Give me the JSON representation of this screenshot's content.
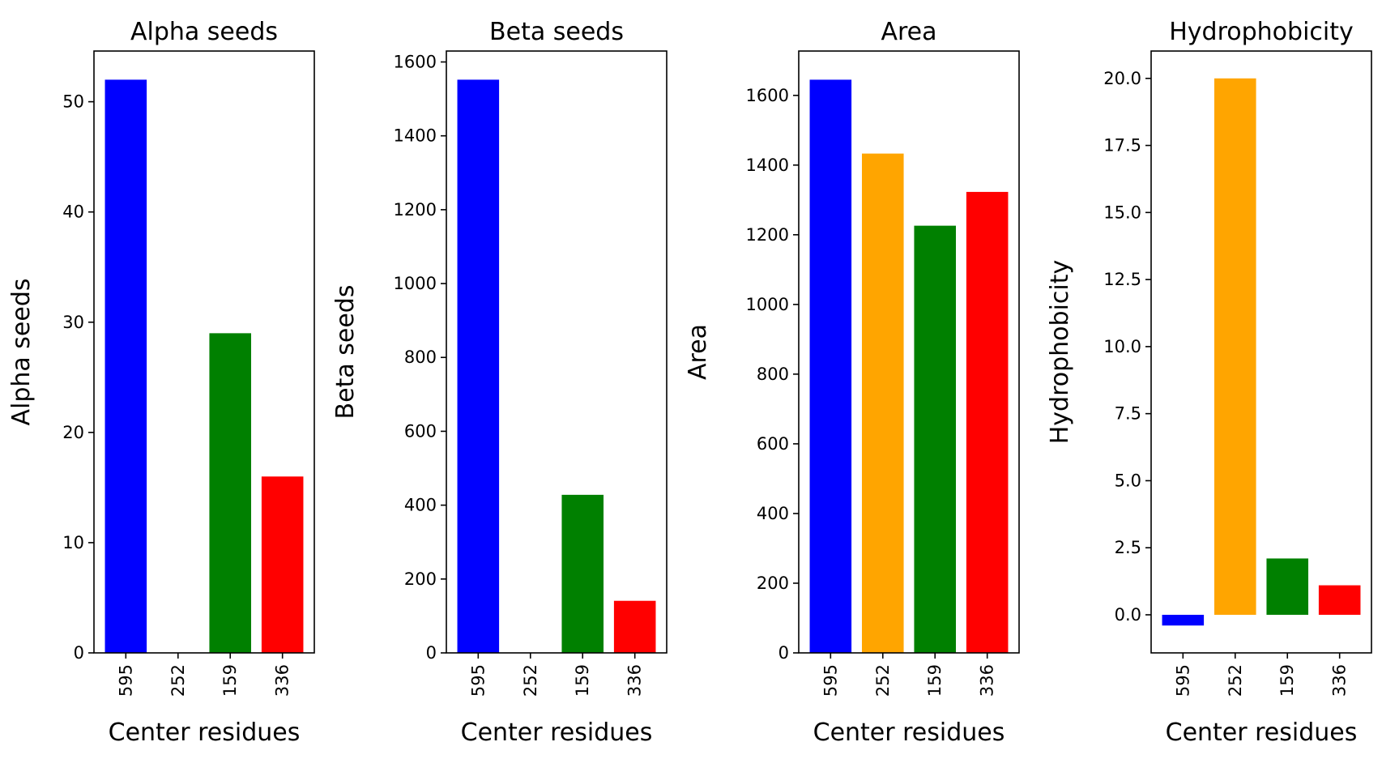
{
  "chart_data": [
    {
      "type": "bar",
      "title": "Alpha seeds",
      "xlabel": "Center residues",
      "ylabel": "Alpha seeds",
      "categories": [
        "595",
        "252",
        "159",
        "336"
      ],
      "values": [
        52,
        0,
        29,
        16
      ],
      "colors": [
        "#0000ff",
        "#ffa500",
        "#008000",
        "#ff0000"
      ],
      "ylim": [
        0,
        54.6
      ],
      "yticks": [
        0,
        10,
        20,
        30,
        40,
        50
      ],
      "ytick_labels": [
        "0",
        "10",
        "20",
        "30",
        "40",
        "50"
      ],
      "grid": false
    },
    {
      "type": "bar",
      "title": "Beta seeds",
      "xlabel": "Center residues",
      "ylabel": "Beta seeds",
      "categories": [
        "595",
        "252",
        "159",
        "336"
      ],
      "values": [
        1552,
        0,
        428,
        141
      ],
      "colors": [
        "#0000ff",
        "#ffa500",
        "#008000",
        "#ff0000"
      ],
      "ylim": [
        0,
        1629.6
      ],
      "yticks": [
        0,
        200,
        400,
        600,
        800,
        1000,
        1200,
        1400,
        1600
      ],
      "ytick_labels": [
        "0",
        "200",
        "400",
        "600",
        "800",
        "1000",
        "1200",
        "1400",
        "1600"
      ],
      "grid": false
    },
    {
      "type": "bar",
      "title": "Area",
      "xlabel": "Center residues",
      "ylabel": "Area",
      "categories": [
        "595",
        "252",
        "159",
        "336"
      ],
      "values": [
        1645,
        1433,
        1226,
        1323
      ],
      "colors": [
        "#0000ff",
        "#ffa500",
        "#008000",
        "#ff0000"
      ],
      "ylim": [
        0,
        1727.3
      ],
      "yticks": [
        0,
        200,
        400,
        600,
        800,
        1000,
        1200,
        1400,
        1600
      ],
      "ytick_labels": [
        "0",
        "200",
        "400",
        "600",
        "800",
        "1000",
        "1200",
        "1400",
        "1600"
      ],
      "grid": false
    },
    {
      "type": "bar",
      "title": "Hydrophobicity",
      "xlabel": "Center residues",
      "ylabel": "Hydrophobicity",
      "categories": [
        "595",
        "252",
        "159",
        "336"
      ],
      "values": [
        -0.4,
        20.0,
        2.1,
        1.1
      ],
      "colors": [
        "#0000ff",
        "#ffa500",
        "#008000",
        "#ff0000"
      ],
      "ylim": [
        -1.42,
        21.02
      ],
      "yticks": [
        0,
        2.5,
        5,
        7.5,
        10,
        12.5,
        15,
        17.5,
        20
      ],
      "ytick_labels": [
        "0.0",
        "2.5",
        "5.0",
        "7.5",
        "10.0",
        "12.5",
        "15.0",
        "17.5",
        "20.0"
      ],
      "grid": false
    }
  ]
}
